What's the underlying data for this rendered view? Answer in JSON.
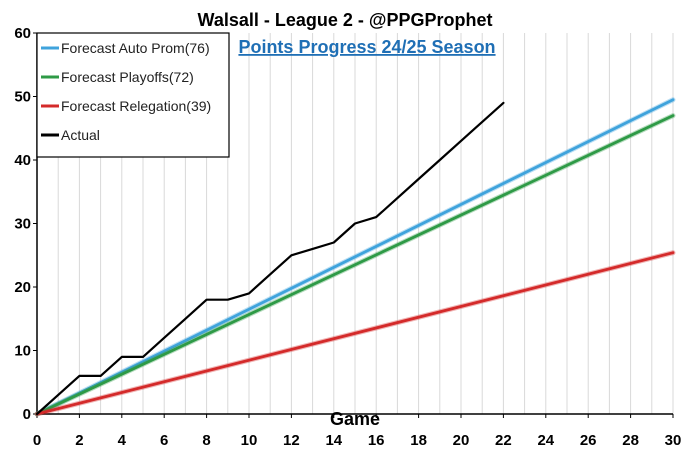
{
  "chart_data": {
    "type": "line",
    "title": "Walsall - League 2 - @PPGProphet",
    "subtitle": "Points Progress 24/25 Season",
    "xlabel": "Game",
    "ylabel": "",
    "xlim": [
      0,
      30
    ],
    "ylim": [
      0,
      60
    ],
    "x_ticks": [
      "0",
      "2",
      "4",
      "6",
      "8",
      "10",
      "12",
      "14",
      "16",
      "18",
      "20",
      "22",
      "24",
      "26",
      "28",
      "30"
    ],
    "y_ticks": [
      "0",
      "10",
      "20",
      "30",
      "40",
      "50",
      "60"
    ],
    "grid": "vertical",
    "legend_position": "top-left",
    "series": [
      {
        "name": "Forecast Auto Prom(76)",
        "color": "#3fa3dc",
        "x": [
          0,
          30
        ],
        "values": [
          0,
          49.5
        ]
      },
      {
        "name": "Forecast Playoffs(72)",
        "color": "#2e9a46",
        "x": [
          0,
          30
        ],
        "values": [
          0,
          47
        ]
      },
      {
        "name": "Forecast Relegation(39)",
        "color": "#d42a2a",
        "x": [
          0,
          30
        ],
        "values": [
          0,
          25.4
        ]
      },
      {
        "name": "Actual",
        "color": "#000000",
        "x": [
          0,
          1,
          2,
          3,
          4,
          5,
          6,
          7,
          8,
          9,
          10,
          11,
          12,
          13,
          14,
          15,
          16,
          17,
          18,
          19,
          20,
          21,
          22
        ],
        "values": [
          0,
          3,
          6,
          6,
          9,
          9,
          12,
          15,
          18,
          18,
          19,
          22,
          25,
          26,
          27,
          30,
          31,
          34,
          37,
          40,
          43,
          46,
          49
        ]
      }
    ]
  }
}
